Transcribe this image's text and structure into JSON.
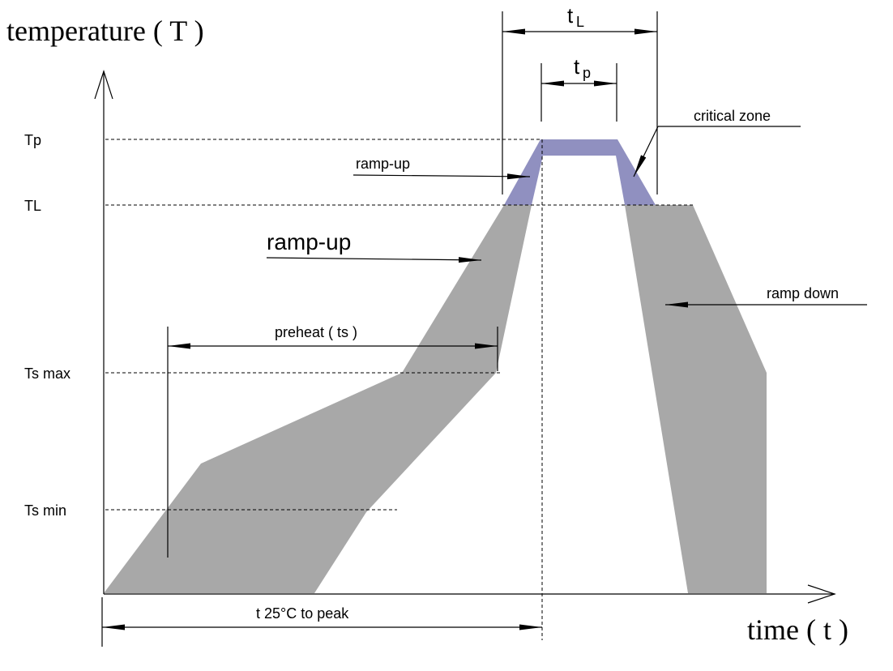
{
  "axis_labels": {
    "y": "temperature ( T )",
    "x": "time ( t )"
  },
  "temperature_levels": [
    "Tp",
    "TL",
    "Ts max",
    "Ts min"
  ],
  "time_spans": {
    "tL": {
      "main": "t",
      "sub": "L"
    },
    "tp": {
      "main": "t",
      "sub": "p"
    },
    "preheat": "preheat ( ts )",
    "t25_to_peak": "t 25°C to peak"
  },
  "annotations": {
    "critical_zone": "critical zone",
    "ramp_up_upper": "ramp-up",
    "ramp_up_main": "ramp-up",
    "ramp_down": "ramp down"
  },
  "colors": {
    "process_window": "#a8a8a8",
    "critical_zone": "#9090c0",
    "lines": "#000000",
    "background": "#ffffff"
  }
}
